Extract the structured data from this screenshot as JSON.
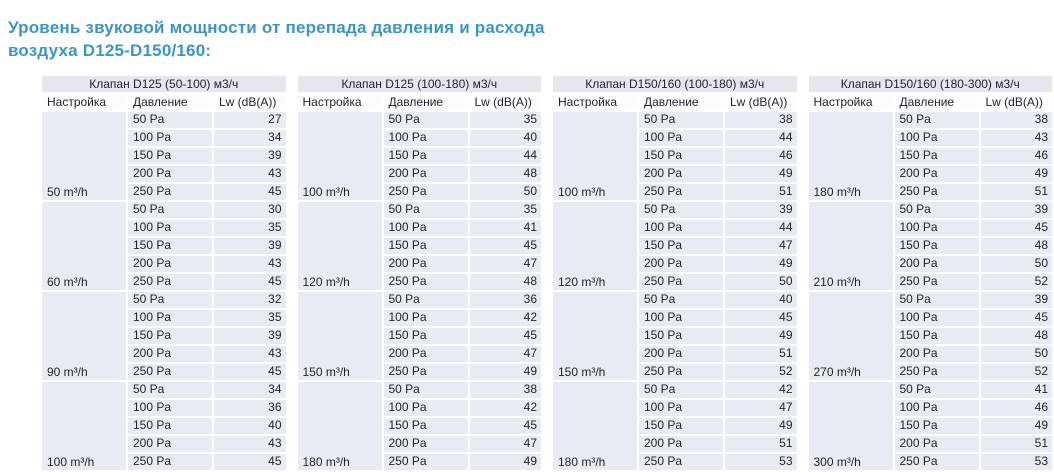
{
  "title": {
    "line1": "Уровень звуковой мощности от перепада давления и расхода",
    "line2": "воздуха D125-D150/160:"
  },
  "colors": {
    "title": "#3c95c9",
    "table_header_bg": "#e7e6ee",
    "cell_bg": "#e9eaf3",
    "text": "#23232c"
  },
  "columns": [
    "Настройка",
    "Давление",
    "Lw (dB(A))"
  ],
  "pressures": [
    "50 Pa",
    "100 Pa",
    "150 Pa",
    "200 Pa",
    "250 Pa"
  ],
  "tables": [
    {
      "title": "Клапан D125 (50-100) м3/ч",
      "groups": [
        {
          "flow": "50 m³/h",
          "lw": [
            27,
            34,
            39,
            43,
            45
          ]
        },
        {
          "flow": "60 m³/h",
          "lw": [
            30,
            35,
            39,
            43,
            45
          ]
        },
        {
          "flow": "90 m³/h",
          "lw": [
            32,
            35,
            39,
            43,
            45
          ]
        },
        {
          "flow": "100 m³/h",
          "lw": [
            34,
            36,
            40,
            43,
            45
          ]
        }
      ]
    },
    {
      "title": "Клапан D125 (100-180) м3/ч",
      "groups": [
        {
          "flow": "100 m³/h",
          "lw": [
            35,
            40,
            44,
            48,
            50
          ]
        },
        {
          "flow": "120 m³/h",
          "lw": [
            35,
            41,
            45,
            47,
            48
          ]
        },
        {
          "flow": "150 m³/h",
          "lw": [
            36,
            42,
            45,
            47,
            49
          ]
        },
        {
          "flow": "180 m³/h",
          "lw": [
            38,
            42,
            45,
            47,
            49
          ]
        }
      ]
    },
    {
      "title": "Клапан D150/160 (100-180) м3/ч",
      "groups": [
        {
          "flow": "100 m³/h",
          "lw": [
            38,
            44,
            46,
            49,
            51
          ]
        },
        {
          "flow": "120 m³/h",
          "lw": [
            39,
            44,
            47,
            49,
            50
          ]
        },
        {
          "flow": "150 m³/h",
          "lw": [
            40,
            45,
            49,
            51,
            52
          ]
        },
        {
          "flow": "180 m³/h",
          "lw": [
            42,
            47,
            49,
            51,
            53
          ]
        }
      ]
    },
    {
      "title": "Клапан D150/160 (180-300) м3/ч",
      "groups": [
        {
          "flow": "180 m³/h",
          "lw": [
            38,
            43,
            46,
            49,
            51
          ]
        },
        {
          "flow": "210 m³/h",
          "lw": [
            39,
            45,
            48,
            50,
            52
          ]
        },
        {
          "flow": "270 m³/h",
          "lw": [
            39,
            45,
            48,
            50,
            52
          ]
        },
        {
          "flow": "300 m³/h",
          "lw": [
            41,
            46,
            49,
            51,
            53
          ]
        }
      ]
    }
  ]
}
